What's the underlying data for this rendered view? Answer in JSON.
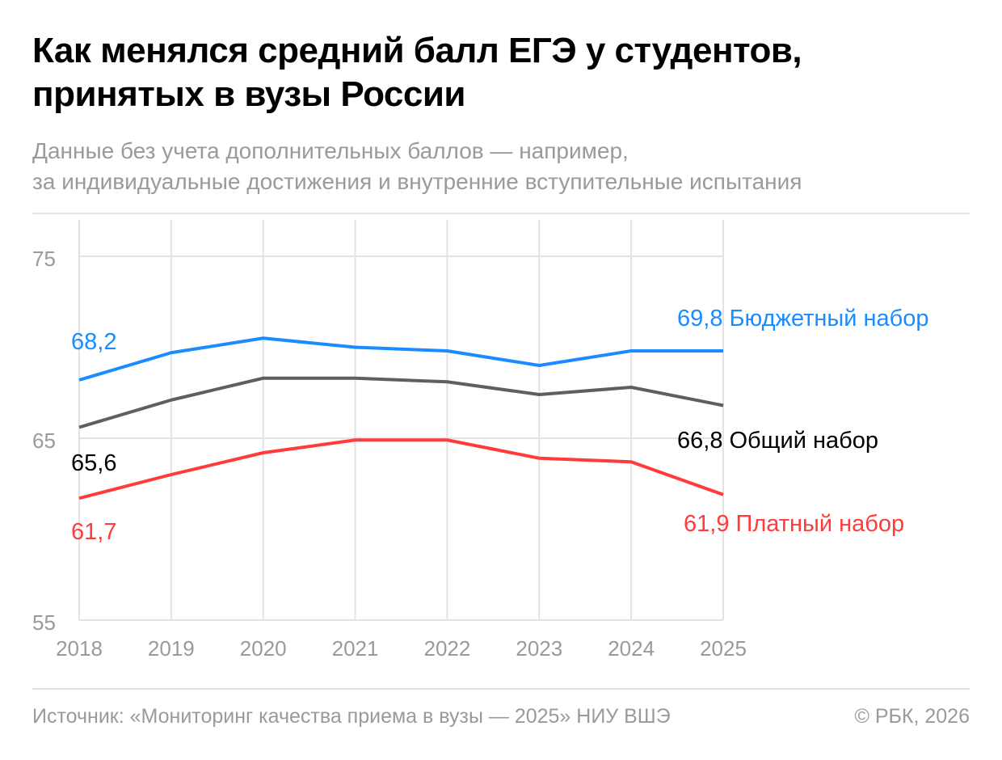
{
  "header": {
    "title": "Как менялся средний балл ЕГЭ у студентов, принятых в вузы России",
    "subtitle_line1": "Данные без учета дополнительных баллов — например,",
    "subtitle_line2": "за индивидуальные достижения и внутренние вступительные испытания"
  },
  "chart_data": {
    "type": "line",
    "x": [
      "2018",
      "2019",
      "2020",
      "2021",
      "2022",
      "2023",
      "2024",
      "2025"
    ],
    "ylim": [
      55,
      77
    ],
    "yticks": [
      "55",
      "65",
      "75"
    ],
    "grid": true,
    "series": [
      {
        "name": "Бюджетный набор",
        "color": "#1a8cff",
        "values": [
          68.2,
          69.7,
          70.5,
          70.0,
          69.8,
          69.0,
          69.8,
          69.8
        ],
        "start_label": "68,2",
        "end_label": "69,8"
      },
      {
        "name": "Общий набор",
        "color": "#5f5f5f",
        "label_color": "#000000",
        "values": [
          65.6,
          67.1,
          68.3,
          68.3,
          68.1,
          67.4,
          67.8,
          66.8
        ],
        "start_label": "65,6",
        "end_label": "66,8"
      },
      {
        "name": "Платный набор",
        "color": "#ff3b3b",
        "values": [
          61.7,
          63.0,
          64.2,
          64.9,
          64.9,
          63.9,
          63.7,
          61.9
        ],
        "start_label": "61,7",
        "end_label": "61,9"
      }
    ]
  },
  "footer": {
    "source": "Источник: «Мониторинг качества приема в вузы — 2025» НИУ ВШЭ",
    "copyright": "© РБК, 2026"
  }
}
